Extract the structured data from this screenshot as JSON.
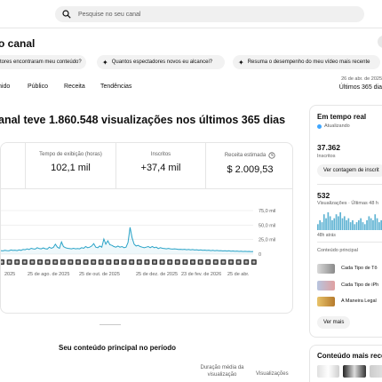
{
  "search": {
    "placeholder": "Pesquise no seu canal"
  },
  "page": {
    "title": "o canal"
  },
  "chips": [
    {
      "label": "tores encontraram meu conteúdo?"
    },
    {
      "label": "Quantos espectadores novos eu alcancei?"
    },
    {
      "label": "Resuma o desempenho do meu vídeo mais recente"
    }
  ],
  "tabs": [
    {
      "label": "nido"
    },
    {
      "label": "Público"
    },
    {
      "label": "Receita"
    },
    {
      "label": "Tendências"
    }
  ],
  "date_range": {
    "line1": "26 de abr. de 2025",
    "line2": "Últimos 365 dia"
  },
  "headline": "anal teve 1.860.548 visualizações nos últimos 365 dias",
  "metrics": [
    {
      "label": "Tempo de exibição (horas)",
      "value": "102,1 mil"
    },
    {
      "label": "Inscritos",
      "value": "+37,4 mil"
    },
    {
      "label": "Receita estimada",
      "value": "$ 2.009,53"
    }
  ],
  "chart_data": {
    "type": "line",
    "x_tick_labels": [
      "2025",
      "25 de ago. de 2025",
      "25 de out. de 2025",
      "25 de dez. de 2025",
      "23 de fev. de 2026",
      "25 de abr."
    ],
    "y_tick_labels": [
      "75,0 mil",
      "50,0 mil",
      "25,0 mil",
      "0"
    ],
    "ylim": [
      0,
      75000
    ],
    "values": [
      6000,
      5500,
      6500,
      6000,
      5800,
      7000,
      6200,
      6800,
      6000,
      7200,
      6500,
      8000,
      7500,
      9000,
      8000,
      10000,
      9000,
      8500,
      11000,
      9500,
      9000,
      10500,
      9200,
      8800,
      12000,
      10000,
      11500,
      17000,
      12000,
      10000,
      21000,
      13000,
      11000,
      10000,
      9500,
      9000,
      10000,
      9000,
      9500,
      9000,
      11000,
      10000,
      13000,
      11000,
      12000,
      14000,
      18000,
      12000,
      11000,
      14000,
      12000,
      26000,
      17000,
      23000,
      16000,
      15000,
      13000,
      12000,
      14000,
      12000,
      13000,
      11000,
      12000,
      20000,
      46000,
      28000,
      17000,
      14000,
      15000,
      13000,
      12000,
      11000,
      12000,
      13000,
      11000,
      13000,
      11000,
      12000,
      9500,
      11000,
      10000,
      9500,
      9000,
      9800,
      9000,
      8500,
      9000,
      8500,
      8000,
      8300,
      7800,
      8200,
      7500,
      8000,
      7300,
      7800,
      7000,
      7500,
      6800,
      7200,
      6500,
      6900,
      6200,
      6800,
      6000,
      6400,
      5800,
      6200,
      5600,
      6000,
      5400,
      5800,
      5200,
      5600,
      5000,
      5400,
      4800,
      5200,
      4600,
      5000,
      4500,
      4800,
      4400,
      4600,
      4300,
      4500
    ]
  },
  "realtime": {
    "title": "Em tempo real",
    "status": "Atualizando",
    "subs_value": "37.362",
    "subs_label": "Inscritos",
    "subs_button": "Ver contagem de inscrit",
    "views_value": "532",
    "views_label": "Visualizações · Últimas 48 h",
    "bars_label": "48h atrás",
    "bars": [
      3,
      5,
      4,
      8,
      6,
      9,
      7,
      5,
      6,
      8,
      7,
      9,
      6,
      7,
      5,
      6,
      4,
      5,
      3,
      4,
      5,
      6,
      4,
      3,
      5,
      7,
      6,
      5,
      8,
      6,
      4,
      5,
      6,
      7,
      5,
      4,
      6,
      3,
      2,
      4
    ],
    "top_content_label": "Conteúdo principal",
    "items": [
      {
        "title": "Cada Tipo de Tô"
      },
      {
        "title": "Cada Tipo de iPh"
      },
      {
        "title": "A Maneira Legal"
      }
    ],
    "more_button": "Ver mais"
  },
  "top_content": {
    "title": "Seu conteúdo principal no período",
    "col1": "Duração média da visualização",
    "col2": "Visualizações"
  },
  "recent": {
    "title": "Conteúdo mais rece"
  },
  "colors": {
    "accent": "#2aa3c7",
    "live_dot": "#3ea6ff"
  }
}
